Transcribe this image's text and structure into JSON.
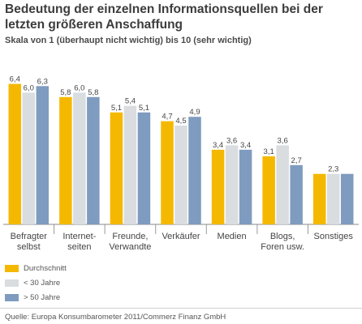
{
  "chart_data": {
    "type": "bar",
    "title": "Bedeutung der einzelnen Informationsquellen bei der letzten größeren Anschaffung",
    "subtitle": "Skala von 1 (überhaupt nicht wichtig) bis 10 (sehr wichtig)",
    "categories": [
      [
        "Befragter",
        "selbst"
      ],
      [
        "Internet-",
        "seiten"
      ],
      [
        "Freunde,",
        "Verwandte"
      ],
      [
        "Verkäufer"
      ],
      [
        "Medien"
      ],
      [
        "Blogs,",
        "Foren usw."
      ],
      [
        "Sonstiges"
      ]
    ],
    "series": [
      {
        "name": "Durchschnitt",
        "color": "#f5b800",
        "values": [
          6.4,
          5.8,
          5.1,
          4.7,
          3.4,
          3.1,
          2.3
        ],
        "labels": [
          "6,4",
          "5,8",
          "5,1",
          "4,7",
          "3,4",
          "3,1",
          ""
        ]
      },
      {
        "name": "< 30 Jahre",
        "color": "#d9dde0",
        "values": [
          6.0,
          6.0,
          5.4,
          4.5,
          3.6,
          3.6,
          2.3
        ],
        "labels": [
          "6,0",
          "6,0",
          "5,4",
          "4,5",
          "3,6",
          "3,6",
          "2,3"
        ]
      },
      {
        "name": "> 50 Jahre",
        "color": "#7f9bbf",
        "values": [
          6.3,
          5.8,
          5.1,
          4.9,
          3.4,
          2.7,
          2.3
        ],
        "labels": [
          "6,3",
          "5,8",
          "5,1",
          "4,9",
          "3,4",
          "2,7",
          ""
        ]
      }
    ],
    "ylim": [
      0,
      7
    ],
    "grid": false,
    "legend_position": "bottom-left"
  },
  "source": "Quelle: Europa Konsumbarometer 2011/Commerz Finanz GmbH"
}
